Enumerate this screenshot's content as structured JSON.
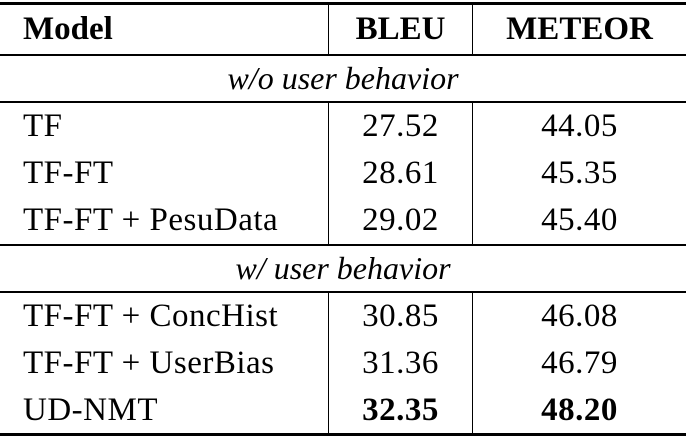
{
  "table": {
    "header": {
      "model": "Model",
      "bleu": "BLEU",
      "meteor": "METEOR"
    },
    "sections": [
      {
        "label": "w/o user behavior",
        "rows": [
          {
            "model": "TF",
            "bleu": "27.52",
            "meteor": "44.05"
          },
          {
            "model": "TF-FT",
            "bleu": "28.61",
            "meteor": "45.35"
          },
          {
            "model": "TF-FT + PesuData",
            "bleu": "29.02",
            "meteor": "45.40"
          }
        ]
      },
      {
        "label": "w/ user behavior",
        "rows": [
          {
            "model": "TF-FT + ConcHist",
            "bleu": "30.85",
            "meteor": "46.08"
          },
          {
            "model": "TF-FT + UserBias",
            "bleu": "31.36",
            "meteor": "46.79"
          },
          {
            "model": "UD-NMT",
            "bleu": "32.35",
            "meteor": "48.20",
            "best": true
          }
        ]
      }
    ],
    "colors": {
      "text": "#000000",
      "background": "#ffffff",
      "rule": "#000000"
    }
  }
}
